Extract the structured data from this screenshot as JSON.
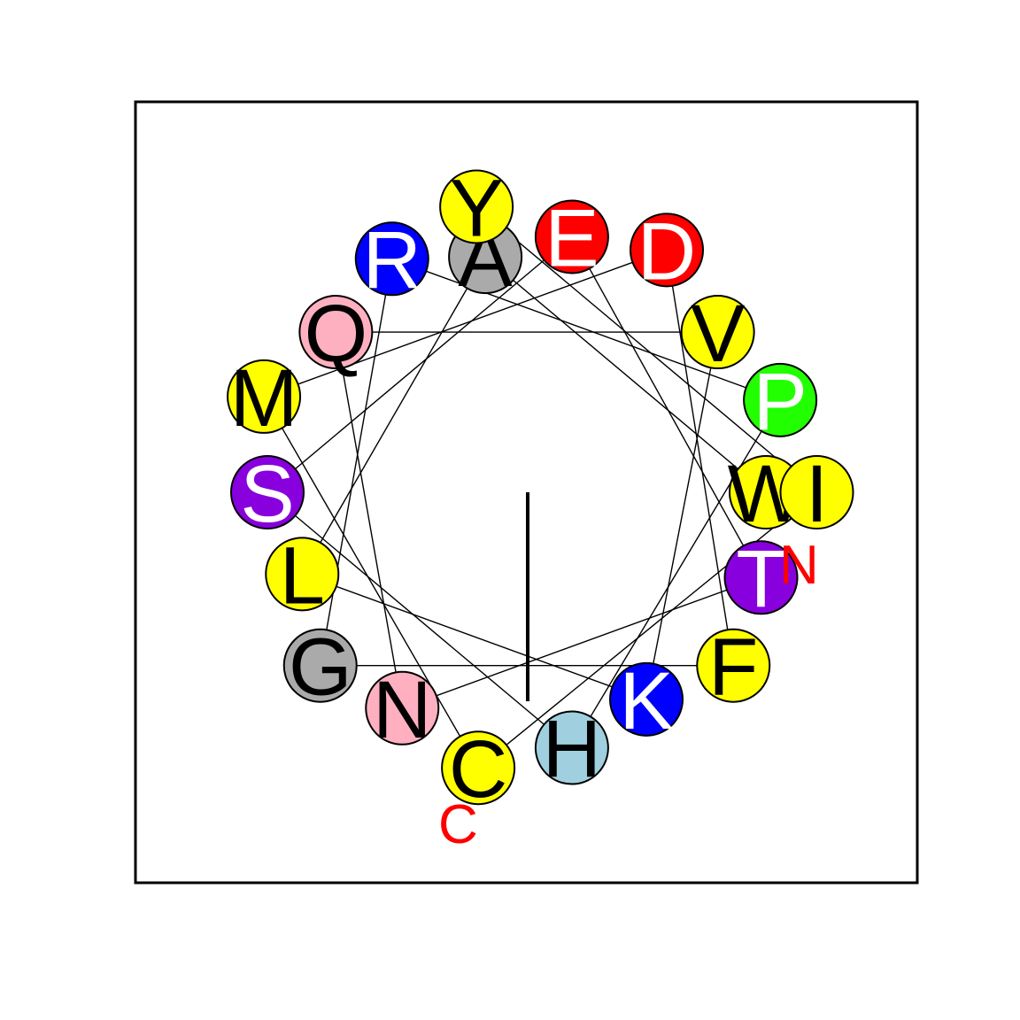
{
  "diagram": {
    "type": "helical-wheel",
    "residues": [
      {
        "letter": "W",
        "fill": "#ffff00",
        "text_color": "#000000"
      },
      {
        "letter": "A",
        "fill": "#aaaaaa",
        "text_color": "#000000"
      },
      {
        "letter": "L",
        "fill": "#ffff00",
        "text_color": "#000000"
      },
      {
        "letter": "K",
        "fill": "#0000ff",
        "text_color": "#ffffff"
      },
      {
        "letter": "V",
        "fill": "#ffff00",
        "text_color": "#000000"
      },
      {
        "letter": "Q",
        "fill": "#ffb0c0",
        "text_color": "#000000"
      },
      {
        "letter": "N",
        "fill": "#ffb0c0",
        "text_color": "#000000"
      },
      {
        "letter": "T",
        "fill": "#8800dd",
        "text_color": "#ffffff"
      },
      {
        "letter": "E",
        "fill": "#ff0000",
        "text_color": "#ffffff"
      },
      {
        "letter": "S",
        "fill": "#8800dd",
        "text_color": "#ffffff"
      },
      {
        "letter": "H",
        "fill": "#a0d0e0",
        "text_color": "#000000"
      },
      {
        "letter": "P",
        "fill": "#22ff00",
        "text_color": "#ffffff"
      },
      {
        "letter": "R",
        "fill": "#0000ff",
        "text_color": "#ffffff"
      },
      {
        "letter": "G",
        "fill": "#aaaaaa",
        "text_color": "#000000"
      },
      {
        "letter": "F",
        "fill": "#ffff00",
        "text_color": "#000000"
      },
      {
        "letter": "D",
        "fill": "#ff0000",
        "text_color": "#ffffff"
      },
      {
        "letter": "M",
        "fill": "#ffff00",
        "text_color": "#000000"
      },
      {
        "letter": "C",
        "fill": "#ffff00",
        "text_color": "#000000"
      },
      {
        "letter": "I",
        "fill": "#ffff00",
        "text_color": "#000000"
      },
      {
        "letter": "Y",
        "fill": "#ffff00",
        "text_color": "#000000"
      }
    ],
    "n_terminus_label": "N",
    "c_terminus_label": "C",
    "terminus_label_color": "#ff0000"
  }
}
